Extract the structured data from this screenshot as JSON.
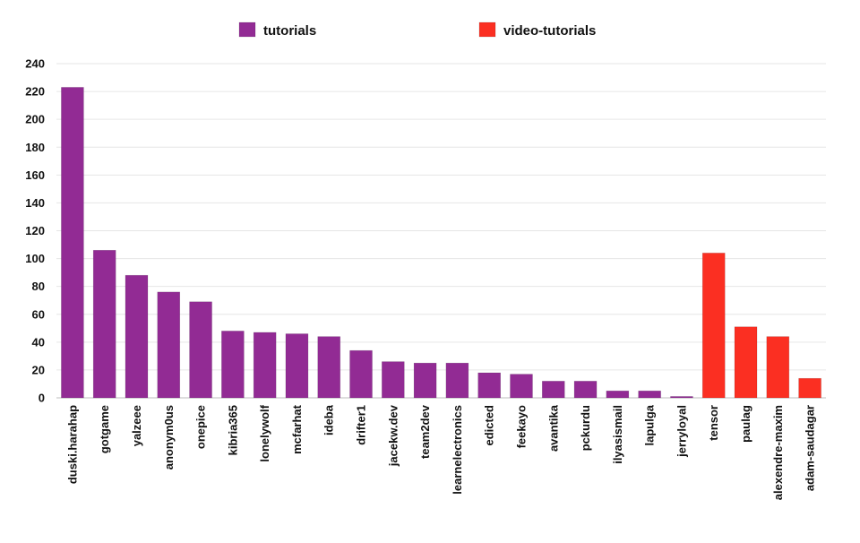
{
  "chart_data": {
    "type": "bar",
    "title": "",
    "xlabel": "",
    "ylabel": "",
    "ylim": [
      0,
      240
    ],
    "yticks": [
      0,
      20,
      40,
      60,
      80,
      100,
      120,
      140,
      160,
      180,
      200,
      220,
      240
    ],
    "grid": true,
    "legend_position": "top-center",
    "series": [
      {
        "name": "tutorials",
        "color": "#922b94",
        "categories": [
          "duski.harahap",
          "gotgame",
          "yalzeee",
          "anonym0us",
          "onepice",
          "kibria365",
          "lonelywolf",
          "mcfarhat",
          "ideba",
          "drifter1",
          "jacekw.dev",
          "team2dev",
          "learnelectronics",
          "edicted",
          "feekayo",
          "avantika",
          "pckurdu",
          "ilyasismail",
          "lapulga",
          "jerryloyal"
        ],
        "values": [
          223,
          106,
          88,
          76,
          69,
          48,
          47,
          46,
          44,
          34,
          26,
          25,
          25,
          18,
          17,
          12,
          12,
          5,
          5,
          1
        ]
      },
      {
        "name": "video-tutorials",
        "color": "#fb2f22",
        "categories": [
          "tensor",
          "paulag",
          "alexendre-maxim",
          "adam-saudagar"
        ],
        "values": [
          104,
          51,
          44,
          14
        ]
      }
    ]
  }
}
